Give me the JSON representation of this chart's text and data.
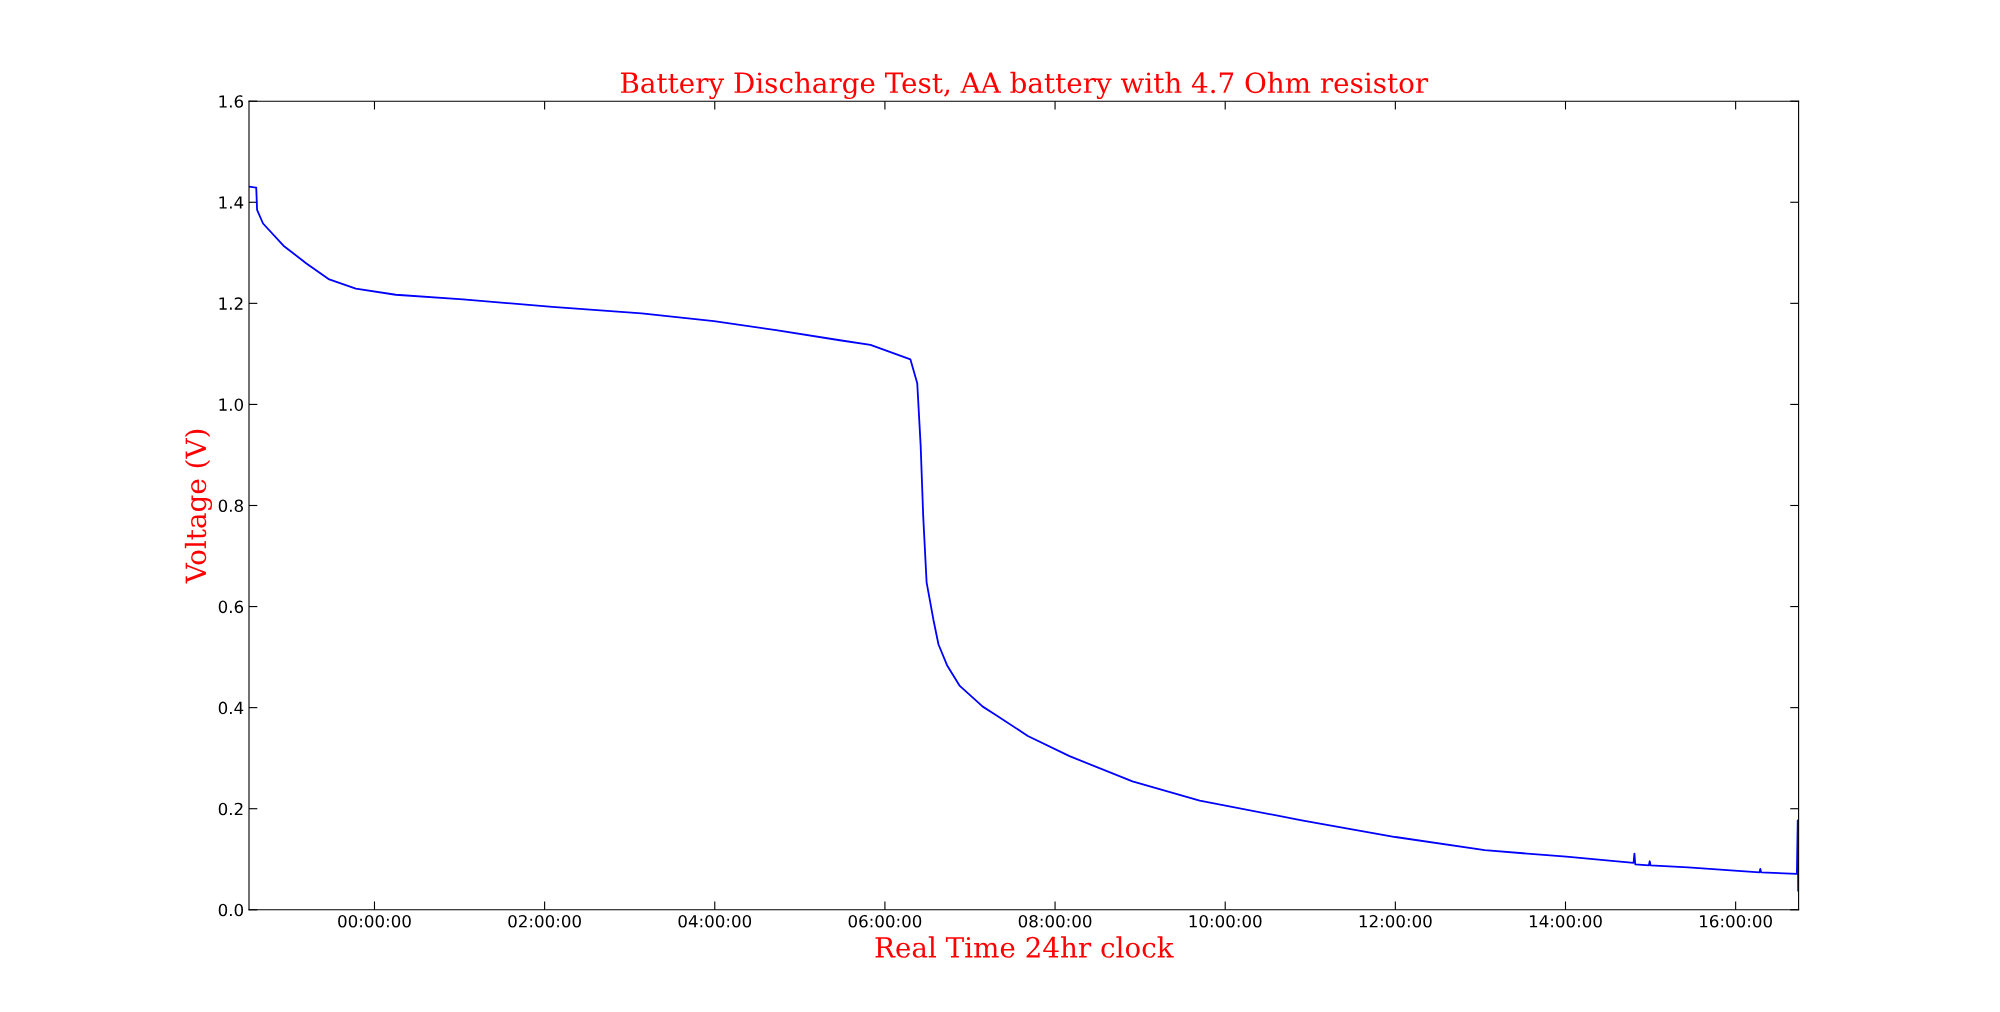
{
  "chart_data": {
    "type": "line",
    "title": "Battery Discharge Test, AA battery with 4.7 Ohm resistor",
    "xlabel": "Real Time 24hr clock",
    "ylabel": "Voltage (V)",
    "x": [
      -1.475,
      -1.39,
      -1.38,
      -1.31,
      -1.07,
      -0.8,
      -0.54,
      -0.22,
      0.25,
      1.04,
      2.09,
      3.14,
      3.99,
      4.72,
      5.47,
      5.83,
      6.3,
      6.38,
      6.42,
      6.45,
      6.49,
      6.57,
      6.63,
      6.73,
      6.88,
      7.15,
      7.29,
      7.68,
      8.17,
      8.91,
      9.7,
      10.9,
      12.0,
      13.05,
      14.01,
      14.8,
      14.81,
      14.82,
      14.98,
      14.99,
      15.0,
      15.44,
      16.28,
      16.29,
      16.3,
      16.72,
      16.73,
      16.735
    ],
    "series": [
      {
        "color": "#0000ff",
        "values": [
          1.431,
          1.429,
          1.385,
          1.358,
          1.314,
          1.279,
          1.248,
          1.229,
          1.217,
          1.208,
          1.193,
          1.18,
          1.165,
          1.147,
          1.127,
          1.118,
          1.089,
          1.042,
          0.919,
          0.779,
          0.648,
          0.574,
          0.525,
          0.484,
          0.443,
          0.402,
          0.387,
          0.344,
          0.304,
          0.254,
          0.216,
          0.177,
          0.144,
          0.118,
          0.105,
          0.093,
          0.111,
          0.09,
          0.088,
          0.096,
          0.088,
          0.084,
          0.074,
          0.081,
          0.074,
          0.071,
          0.177,
          0.038
        ]
      }
    ],
    "xlim": [
      -1.475,
      16.74
    ],
    "xticks": [
      {
        "value": 0,
        "label": "00:00:00"
      },
      {
        "value": 2,
        "label": "02:00:00"
      },
      {
        "value": 4,
        "label": "04:00:00"
      },
      {
        "value": 6,
        "label": "06:00:00"
      },
      {
        "value": 8,
        "label": "08:00:00"
      },
      {
        "value": 10,
        "label": "10:00:00"
      },
      {
        "value": 12,
        "label": "12:00:00"
      },
      {
        "value": 14,
        "label": "14:00:00"
      },
      {
        "value": 16,
        "label": "16:00:00"
      }
    ],
    "ylim": [
      0,
      1.6
    ],
    "yticks": [
      {
        "value": 0,
        "label": "0.0"
      },
      0.2,
      0.4,
      0.6,
      0.8,
      {
        "value": 1.0,
        "label": "1.0"
      },
      1.2,
      1.4,
      1.6
    ],
    "grid": false,
    "marker": "none",
    "line_style": "solid"
  }
}
